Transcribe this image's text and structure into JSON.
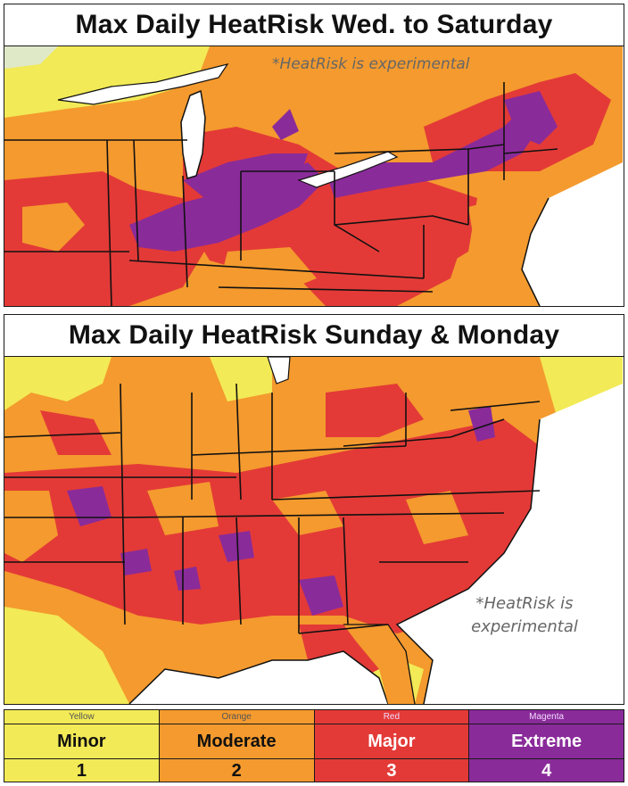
{
  "panels": [
    {
      "title": "Max Daily HeatRisk Wed. to Saturday",
      "note": "*HeatRisk is experimental"
    },
    {
      "title": "Max Daily HeatRisk Sunday & Monday",
      "note": "*HeatRisk is experimental"
    }
  ],
  "legend": [
    {
      "color_name": "Yellow",
      "level": "Minor",
      "number": "1",
      "hex": "#f2ea56"
    },
    {
      "color_name": "Orange",
      "level": "Moderate",
      "number": "2",
      "hex": "#f49a2e"
    },
    {
      "color_name": "Red",
      "level": "Major",
      "number": "3",
      "hex": "#e33a37"
    },
    {
      "color_name": "Magenta",
      "level": "Extreme",
      "number": "4",
      "hex": "#8a2b9a"
    }
  ],
  "colors": {
    "yellow": "#f2ea56",
    "orange": "#f49a2e",
    "red": "#e33a37",
    "magenta": "#8a2b9a",
    "water": "#ffffff",
    "border": "#111111"
  }
}
